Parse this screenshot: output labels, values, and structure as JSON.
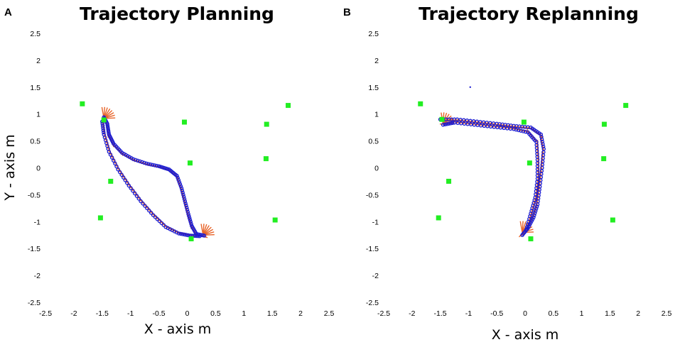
{
  "chart_data": [
    {
      "type": "scatter",
      "panel_label": "A",
      "title": "Trajectory Planning",
      "xlabel": "X - axis m",
      "ylabel": "Y - axis m",
      "xlim": [
        -2.5,
        2.5
      ],
      "ylim": [
        -2.5,
        2.5
      ],
      "xticks": [
        "-2.5",
        "-2",
        "-1.5",
        "-1",
        "-0.5",
        "0",
        "0.5",
        "1",
        "1.5",
        "2",
        "2.5"
      ],
      "yticks": [
        "2.5",
        "2",
        "1.5",
        "1",
        "0.5",
        "0",
        "-0.5",
        "-1",
        "-1.5",
        "-2",
        "-2.5"
      ],
      "colors": {
        "landmark": "#22ee22",
        "path": "#1c1cd0",
        "orientation": "#e8652a"
      },
      "landmarks": [
        [
          -1.85,
          1.19
        ],
        [
          -1.47,
          0.89
        ],
        [
          -0.05,
          0.85
        ],
        [
          1.4,
          0.81
        ],
        [
          1.78,
          1.16
        ],
        [
          0.05,
          0.09
        ],
        [
          1.39,
          0.17
        ],
        [
          -1.35,
          -0.25
        ],
        [
          -1.53,
          -0.93
        ],
        [
          1.55,
          -0.97
        ],
        [
          0.07,
          -1.32
        ]
      ],
      "path_forward": [
        [
          -1.47,
          0.94
        ],
        [
          -1.41,
          0.82
        ],
        [
          -1.38,
          0.62
        ],
        [
          -1.3,
          0.45
        ],
        [
          -1.15,
          0.28
        ],
        [
          -0.95,
          0.16
        ],
        [
          -0.72,
          0.08
        ],
        [
          -0.5,
          0.03
        ],
        [
          -0.32,
          -0.03
        ],
        [
          -0.18,
          -0.15
        ],
        [
          -0.1,
          -0.38
        ],
        [
          -0.04,
          -0.62
        ],
        [
          0.02,
          -0.86
        ],
        [
          0.08,
          -1.08
        ],
        [
          0.16,
          -1.23
        ],
        [
          0.3,
          -1.26
        ]
      ],
      "path_return": [
        [
          0.22,
          -1.27
        ],
        [
          0.05,
          -1.26
        ],
        [
          -0.15,
          -1.22
        ],
        [
          -0.38,
          -1.1
        ],
        [
          -0.6,
          -0.88
        ],
        [
          -0.82,
          -0.62
        ],
        [
          -1.03,
          -0.33
        ],
        [
          -1.22,
          -0.03
        ],
        [
          -1.38,
          0.3
        ],
        [
          -1.47,
          0.62
        ],
        [
          -1.5,
          0.86
        ]
      ],
      "end_fan": [
        -1.47,
        0.92
      ],
      "end_fan2": [
        0.28,
        -1.25
      ]
    },
    {
      "type": "scatter",
      "panel_label": "B",
      "title": "Trajectory Replanning",
      "xlabel": "X - axis m",
      "ylabel": "",
      "xlim": [
        -2.5,
        2.5
      ],
      "ylim": [
        -2.5,
        2.5
      ],
      "xticks": [
        "-2.5",
        "-2",
        "-1.5",
        "-1",
        "-0.5",
        "0",
        "0.5",
        "1",
        "1.5",
        "2",
        "2.5"
      ],
      "yticks": [
        "2.5",
        "2",
        "1.5",
        "1",
        "0.5",
        "0",
        "-0.5",
        "-1",
        "-1.5",
        "-2",
        "-2.5"
      ],
      "colors": {
        "landmark": "#22ee22",
        "path": "#1c1cd0",
        "orientation": "#e8652a"
      },
      "landmarks": [
        [
          -1.85,
          1.19
        ],
        [
          -1.47,
          0.9
        ],
        [
          -0.02,
          0.85
        ],
        [
          1.4,
          0.81
        ],
        [
          1.78,
          1.16
        ],
        [
          0.08,
          0.09
        ],
        [
          1.39,
          0.17
        ],
        [
          -1.35,
          -0.25
        ],
        [
          -1.53,
          -0.93
        ],
        [
          1.55,
          -0.97
        ],
        [
          0.1,
          -1.32
        ]
      ],
      "path_forward": [
        [
          -1.5,
          0.9
        ],
        [
          -1.2,
          0.9
        ],
        [
          -0.85,
          0.86
        ],
        [
          -0.5,
          0.82
        ],
        [
          -0.2,
          0.78
        ],
        [
          0.1,
          0.75
        ],
        [
          0.28,
          0.62
        ],
        [
          0.33,
          0.35
        ],
        [
          0.3,
          0.0
        ],
        [
          0.26,
          -0.35
        ],
        [
          0.22,
          -0.68
        ],
        [
          0.15,
          -0.92
        ],
        [
          0.05,
          -1.12
        ],
        [
          -0.05,
          -1.25
        ]
      ],
      "path_return": [
        [
          0.02,
          -1.15
        ],
        [
          0.1,
          -0.85
        ],
        [
          0.18,
          -0.55
        ],
        [
          0.22,
          -0.2
        ],
        [
          0.22,
          0.15
        ],
        [
          0.2,
          0.48
        ],
        [
          0.05,
          0.66
        ],
        [
          -0.2,
          0.72
        ],
        [
          -0.55,
          0.76
        ],
        [
          -0.9,
          0.8
        ],
        [
          -1.25,
          0.84
        ],
        [
          -1.45,
          0.8
        ]
      ],
      "stray_point": [
        -0.97,
        1.5
      ],
      "end_fan": [
        -1.45,
        0.82
      ],
      "end_fan2": [
        -0.05,
        -1.2
      ]
    }
  ]
}
